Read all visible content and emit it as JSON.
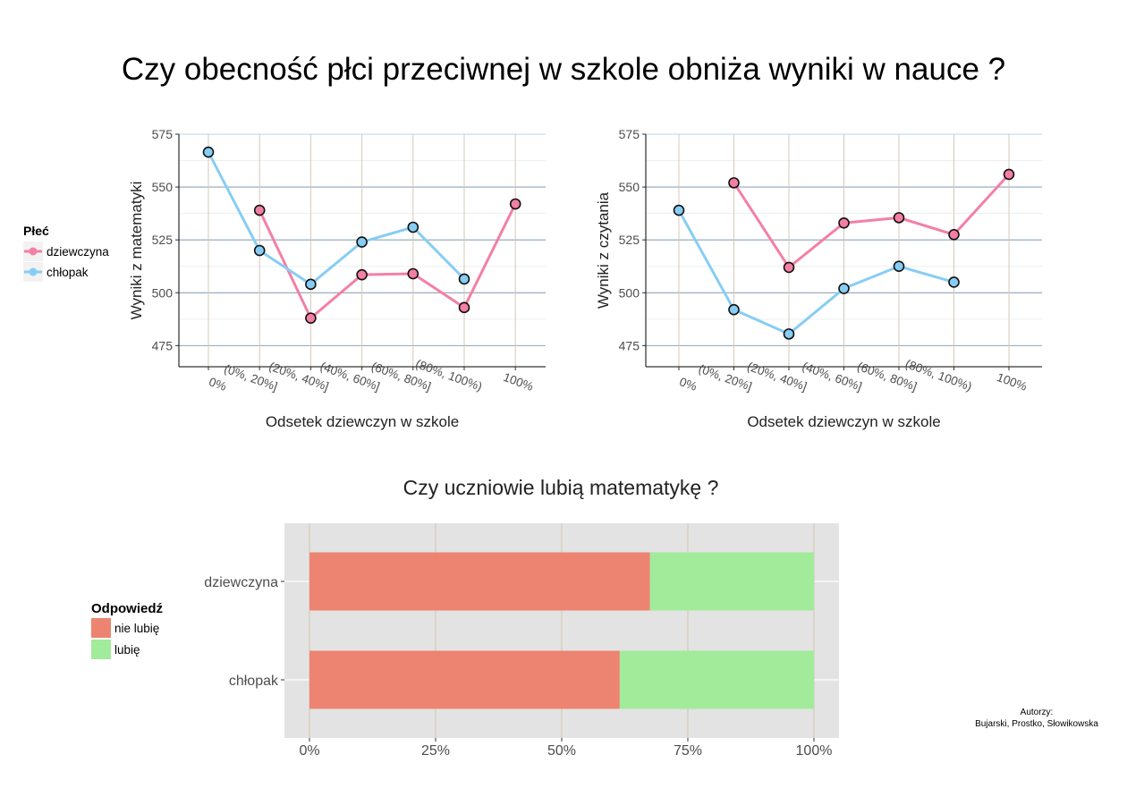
{
  "title": "Czy obecność płci przeciwnej w szkole obniża wyniki w nauce ?",
  "authors": {
    "label": "Autorzy:",
    "names": "Bujarski, Prostko, Słowikowska"
  },
  "line_legend": {
    "title": "Płeć",
    "items": [
      {
        "label": "dziewczyna",
        "color": "#f47fa4"
      },
      {
        "label": "chłopak",
        "color": "#87cdf3"
      }
    ]
  },
  "bar_legend": {
    "title": "Odpowiedź",
    "items": [
      {
        "label": "nie lubię",
        "color": "#ed8471"
      },
      {
        "label": "lubię",
        "color": "#a1eb9a"
      }
    ]
  },
  "chart_data": [
    {
      "type": "line",
      "xlabel": "Odsetek dziewczyn w szkole",
      "ylabel": "Wyniki z matematyki",
      "categories": [
        "0%",
        "(0%, 20%]",
        "(20%, 40%]",
        "(40%, 60%]",
        "(60%, 80%]",
        "(80%, 100%)",
        "100%"
      ],
      "ylim": [
        465,
        575
      ],
      "yticks": [
        475,
        500,
        525,
        550,
        575
      ],
      "series": [
        {
          "name": "dziewczyna",
          "color": "#f47fa4",
          "values": [
            null,
            539,
            488,
            508.5,
            509,
            493,
            542
          ]
        },
        {
          "name": "chłopak",
          "color": "#87cdf3",
          "values": [
            566.5,
            520,
            504,
            524,
            531,
            506.5,
            null
          ]
        }
      ]
    },
    {
      "type": "line",
      "xlabel": "Odsetek dziewczyn w szkole",
      "ylabel": "Wyniki z czytania",
      "categories": [
        "0%",
        "(0%, 20%]",
        "(20%, 40%]",
        "(40%, 60%]",
        "(60%, 80%]",
        "(80%, 100%)",
        "100%"
      ],
      "ylim": [
        465,
        575
      ],
      "yticks": [
        475,
        500,
        525,
        550,
        575
      ],
      "series": [
        {
          "name": "dziewczyna",
          "color": "#f47fa4",
          "values": [
            null,
            552,
            512,
            533,
            535.5,
            527.5,
            556
          ]
        },
        {
          "name": "chłopak",
          "color": "#87cdf3",
          "values": [
            539,
            492,
            480.5,
            502,
            512.5,
            505,
            null
          ]
        }
      ]
    },
    {
      "type": "bar",
      "title": "Czy uczniowie lubią matematykę ?",
      "orientation": "horizontal",
      "stacked": true,
      "categories": [
        "dziewczyna",
        "chłopak"
      ],
      "xticks": [
        "0%",
        "25%",
        "50%",
        "75%",
        "100%"
      ],
      "xlim": [
        0,
        1
      ],
      "series": [
        {
          "name": "nie lubię",
          "color": "#ed8471",
          "values": [
            0.675,
            0.615
          ]
        },
        {
          "name": "lubię",
          "color": "#a1eb9a",
          "values": [
            0.325,
            0.385
          ]
        }
      ]
    }
  ]
}
